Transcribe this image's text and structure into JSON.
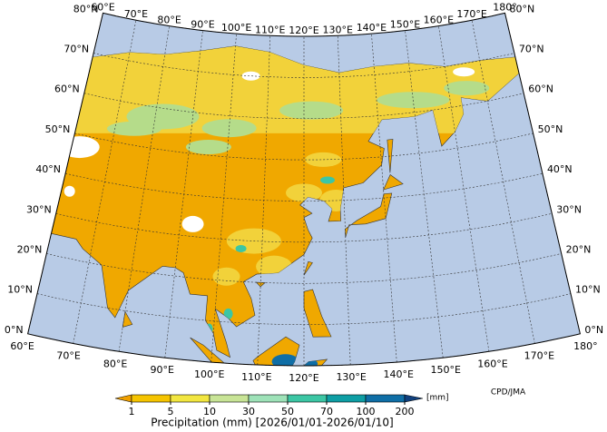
{
  "map": {
    "top_lon_labels": [
      "60°E",
      "70°E",
      "80°E",
      "90°E",
      "100°E",
      "110°E",
      "120°E",
      "130°E",
      "140°E",
      "150°E",
      "160°E",
      "170°E",
      "180°"
    ],
    "bottom_lon_labels": [
      "60°E",
      "70°E",
      "80°E",
      "90°E",
      "100°E",
      "110°E",
      "120°E",
      "130°E",
      "140°E",
      "150°E",
      "160°E",
      "170°E",
      "180°"
    ],
    "left_lat_labels": [
      "0°N",
      "10°N",
      "20°N",
      "30°N",
      "40°N",
      "50°N",
      "60°N",
      "70°N",
      "80°N"
    ],
    "right_lat_labels": [
      "0°N",
      "10°N",
      "20°N",
      "30°N",
      "40°N",
      "50°N",
      "60°N",
      "70°N",
      "80°N"
    ]
  },
  "colorbar": {
    "ticks": [
      1,
      5,
      10,
      30,
      50,
      70,
      100,
      200
    ],
    "colors": [
      "#f0a000",
      "#f5c400",
      "#f2e640",
      "#c8e496",
      "#9ee2b8",
      "#3cc6a4",
      "#0e9ea4",
      "#0f6ea6",
      "#10407e"
    ],
    "unit": "[mm]",
    "label": "Precipitation (mm) [2026/01/01-2026/01/10]"
  },
  "credit": "CPD/JMA"
}
